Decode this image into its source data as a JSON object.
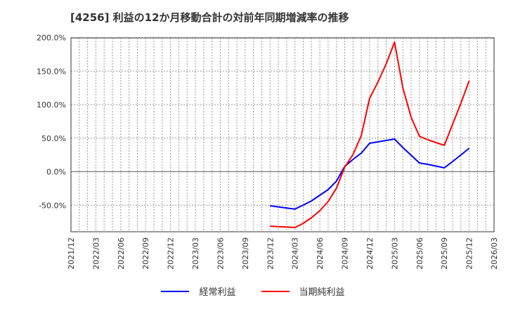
{
  "title": "[4256]  利益の12か月移動合計の対前年同期増減率の推移",
  "legend": [
    {
      "label": "経常利益",
      "color": "#0000ff"
    },
    {
      "label": "当期純利益",
      "color": "#ff0000"
    }
  ],
  "chart_data": {
    "type": "line",
    "title": "[4256]  利益の12か月移動合計の対前年同期増減率の推移",
    "xlabel": "",
    "ylabel": "",
    "ylim": [
      -90,
      200
    ],
    "yticks": [
      "200.0%",
      "150.0%",
      "100.0%",
      "50.0%",
      "0.0%",
      "-50.0%"
    ],
    "ytick_values": [
      200,
      150,
      100,
      50,
      0,
      -50
    ],
    "xticks": [
      "2021/12",
      "2022/03",
      "2022/06",
      "2022/09",
      "2022/12",
      "2023/03",
      "2023/06",
      "2023/09",
      "2023/12",
      "2024/03",
      "2024/06",
      "2024/09",
      "2024/12",
      "2025/03",
      "2025/06",
      "2025/09",
      "2025/12",
      "2026/03"
    ],
    "grid": true,
    "legend_position": "bottom",
    "x": [
      "2023/12",
      "2024/01",
      "2024/02",
      "2024/03",
      "2024/04",
      "2024/05",
      "2024/06",
      "2024/07",
      "2024/08",
      "2024/09",
      "2024/10",
      "2024/11",
      "2024/12",
      "2025/01",
      "2025/02",
      "2025/03",
      "2025/04",
      "2025/05",
      "2025/06",
      "2025/07",
      "2025/08",
      "2025/09",
      "2025/10",
      "2025/11",
      "2025/12"
    ],
    "series": [
      {
        "name": "経常利益",
        "color": "#0000ff",
        "values": [
          -50.8,
          -52.5,
          -54.1,
          -55.7,
          -49.7,
          -43.5,
          -35.1,
          -26.7,
          -14.0,
          7.9,
          18.3,
          27.7,
          42.4,
          44.5,
          46.6,
          48.7,
          36.0,
          24.6,
          13.0,
          11.0,
          8.4,
          5.8,
          15.2,
          25.0,
          35.0
        ]
      },
      {
        "name": "当期純利益",
        "color": "#ff0000",
        "values": [
          -81.2,
          -82.0,
          -82.5,
          -83.2,
          -77.0,
          -68.6,
          -58.1,
          -44.5,
          -24.6,
          6.8,
          25.7,
          53.9,
          109.4,
          133.5,
          160.7,
          193.2,
          125.1,
          81.2,
          52.9,
          47.6,
          43.5,
          39.3,
          70.7,
          102.1,
          135.6
        ]
      }
    ]
  }
}
